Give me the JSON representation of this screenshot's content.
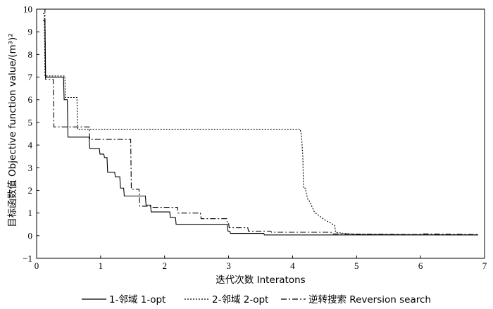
{
  "chart_data": {
    "type": "line",
    "xlabel": "迭代次数  Interatons",
    "ylabel": "目标函数值  Objective function value/(m³)²",
    "xlim": [
      0,
      7
    ],
    "ylim": [
      -1,
      10
    ],
    "xticks": [
      "0",
      "1",
      "2",
      "3",
      "4",
      "5",
      "6",
      "7"
    ],
    "yticks": [
      "−1",
      "0",
      "1",
      "2",
      "3",
      "4",
      "5",
      "6",
      "7",
      "8",
      "9",
      "10"
    ],
    "grid": false,
    "legend_position": "bottom",
    "series": [
      {
        "name": "1-邻域  1-opt",
        "style": "solid",
        "color": "#000000",
        "points": [
          [
            0.1,
            9.5
          ],
          [
            0.13,
            9.5
          ],
          [
            0.14,
            7.0
          ],
          [
            0.42,
            7.0
          ],
          [
            0.43,
            6.0
          ],
          [
            0.48,
            6.0
          ],
          [
            0.49,
            4.35
          ],
          [
            0.82,
            4.35
          ],
          [
            0.83,
            3.85
          ],
          [
            0.98,
            3.85
          ],
          [
            0.99,
            3.6
          ],
          [
            1.05,
            3.6
          ],
          [
            1.06,
            3.45
          ],
          [
            1.1,
            3.45
          ],
          [
            1.11,
            2.8
          ],
          [
            1.22,
            2.8
          ],
          [
            1.23,
            2.6
          ],
          [
            1.3,
            2.6
          ],
          [
            1.31,
            2.1
          ],
          [
            1.36,
            2.1
          ],
          [
            1.37,
            1.75
          ],
          [
            1.7,
            1.75
          ],
          [
            1.71,
            1.35
          ],
          [
            1.78,
            1.35
          ],
          [
            1.79,
            1.05
          ],
          [
            2.08,
            1.05
          ],
          [
            2.09,
            0.8
          ],
          [
            2.17,
            0.8
          ],
          [
            2.18,
            0.5
          ],
          [
            2.98,
            0.5
          ],
          [
            2.99,
            0.2
          ],
          [
            3.02,
            0.2
          ],
          [
            3.03,
            0.1
          ],
          [
            3.55,
            0.1
          ],
          [
            3.56,
            0.03
          ],
          [
            6.9,
            0.03
          ]
        ]
      },
      {
        "name": "2-邻域  2-opt",
        "style": "dotted",
        "color": "#000000",
        "points": [
          [
            0.1,
            9.8
          ],
          [
            0.12,
            9.8
          ],
          [
            0.13,
            7.05
          ],
          [
            0.44,
            7.05
          ],
          [
            0.45,
            6.1
          ],
          [
            0.63,
            6.1
          ],
          [
            0.64,
            4.7
          ],
          [
            4.12,
            4.7
          ],
          [
            4.14,
            4.4
          ],
          [
            4.16,
            3.5
          ],
          [
            4.17,
            2.1
          ],
          [
            4.2,
            2.1
          ],
          [
            4.22,
            1.8
          ],
          [
            4.24,
            1.6
          ],
          [
            4.27,
            1.5
          ],
          [
            4.3,
            1.3
          ],
          [
            4.34,
            1.05
          ],
          [
            4.38,
            0.95
          ],
          [
            4.43,
            0.85
          ],
          [
            4.5,
            0.7
          ],
          [
            4.6,
            0.55
          ],
          [
            4.66,
            0.45
          ],
          [
            4.67,
            0.15
          ],
          [
            4.8,
            0.1
          ],
          [
            5.0,
            0.06
          ],
          [
            6.9,
            0.03
          ]
        ]
      },
      {
        "name": "逆转搜索  Reversion search",
        "style": "dashdot",
        "color": "#000000",
        "points": [
          [
            0.1,
            10.0
          ],
          [
            0.13,
            10.0
          ],
          [
            0.14,
            6.9
          ],
          [
            0.26,
            6.9
          ],
          [
            0.27,
            4.8
          ],
          [
            0.82,
            4.8
          ],
          [
            0.83,
            4.25
          ],
          [
            1.47,
            4.25
          ],
          [
            1.48,
            2.05
          ],
          [
            1.6,
            2.05
          ],
          [
            1.61,
            1.3
          ],
          [
            1.79,
            1.3
          ],
          [
            1.8,
            1.25
          ],
          [
            2.2,
            1.25
          ],
          [
            2.21,
            1.0
          ],
          [
            2.56,
            1.0
          ],
          [
            2.57,
            0.75
          ],
          [
            2.97,
            0.75
          ],
          [
            2.98,
            0.55
          ],
          [
            3.0,
            0.55
          ],
          [
            3.01,
            0.35
          ],
          [
            3.3,
            0.35
          ],
          [
            3.31,
            0.2
          ],
          [
            3.66,
            0.2
          ],
          [
            3.67,
            0.15
          ],
          [
            4.6,
            0.15
          ],
          [
            4.61,
            0.08
          ],
          [
            5.95,
            0.05
          ],
          [
            6.05,
            0.08
          ],
          [
            6.9,
            0.05
          ]
        ]
      }
    ]
  }
}
